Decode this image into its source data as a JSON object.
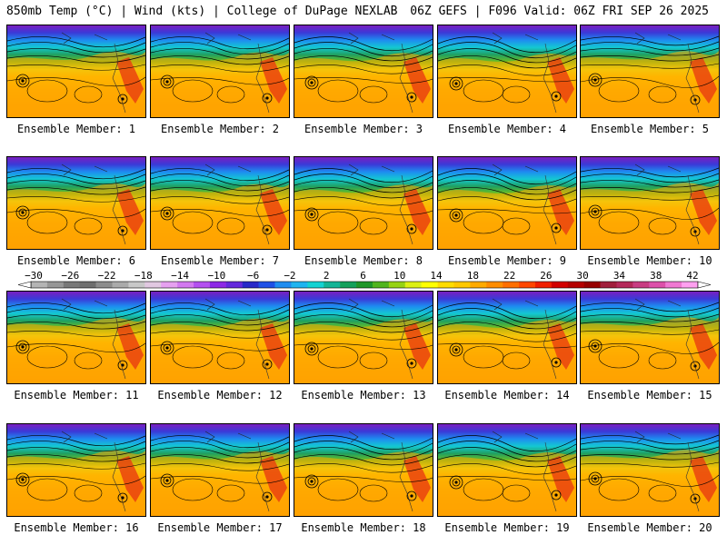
{
  "header": {
    "left_title": "850mb Temp (°C) | Wind (kts) | College of DuPage NEXLAB",
    "right_title": "06Z GEFS | F096 Valid: 06Z FRI SEP 26 2025"
  },
  "member_label_prefix": "Ensemble Member: ",
  "members": [
    1,
    2,
    3,
    4,
    5,
    6,
    7,
    8,
    9,
    10,
    11,
    12,
    13,
    14,
    15,
    16,
    17,
    18,
    19,
    20
  ],
  "colorbar": {
    "ticks": [
      -30,
      -26,
      -22,
      -18,
      -14,
      -10,
      -6,
      -2,
      2,
      6,
      10,
      14,
      18,
      22,
      26,
      30,
      34,
      38,
      42
    ],
    "colors": [
      "#b4b4b4",
      "#969696",
      "#787878",
      "#6e6e6e",
      "#8c8c8c",
      "#aaaaaa",
      "#c8c8c8",
      "#e1c8e1",
      "#e6a0f0",
      "#d278f0",
      "#b450f0",
      "#8c28e6",
      "#6428dc",
      "#2828c8",
      "#1e50e6",
      "#1e8cf0",
      "#1eb4f0",
      "#14d2d2",
      "#14b496",
      "#14a05a",
      "#1e9628",
      "#50b41e",
      "#96d214",
      "#dcf014",
      "#ffff00",
      "#ffdc00",
      "#ffc800",
      "#ffaa00",
      "#ff8c00",
      "#ff6e00",
      "#ff4600",
      "#f01e00",
      "#d20000",
      "#b40000",
      "#960000",
      "#a01e3c",
      "#b4285a",
      "#c83c82",
      "#dc50aa",
      "#f078d2",
      "#ffa0f0"
    ]
  }
}
